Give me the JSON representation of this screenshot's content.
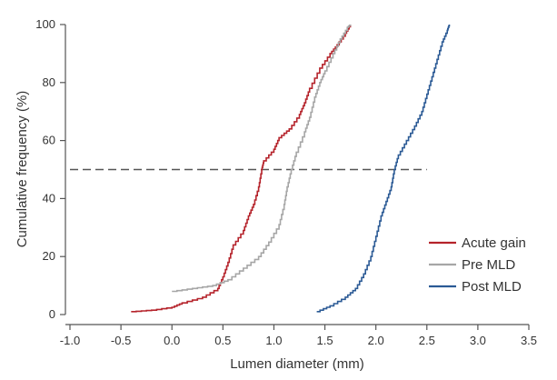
{
  "chart_data": {
    "type": "line",
    "xlabel": "Lumen diameter (mm)",
    "ylabel": "Cumulative frequency (%)",
    "xlim": [
      -1.0,
      3.5
    ],
    "ylim": [
      0,
      100
    ],
    "xticks": [
      "-1.0",
      "-0.5",
      "0.0",
      "0.5",
      "1.0",
      "1.5",
      "2.0",
      "2.5",
      "3.0",
      "3.5"
    ],
    "yticks": [
      "0",
      "20",
      "40",
      "60",
      "80",
      "100"
    ],
    "grid": false,
    "legend_position": "bottom-right",
    "reference_line": {
      "y": 50,
      "x_range": [
        -1.0,
        2.5
      ],
      "style": "dashed"
    },
    "series": [
      {
        "name": "Acute gain",
        "color": "#b5232b",
        "points": [
          [
            -0.4,
            1
          ],
          [
            -0.2,
            1.5
          ],
          [
            0.0,
            2.5
          ],
          [
            0.1,
            4
          ],
          [
            0.3,
            6
          ],
          [
            0.45,
            9
          ],
          [
            0.5,
            13
          ],
          [
            0.55,
            18
          ],
          [
            0.6,
            24
          ],
          [
            0.7,
            29
          ],
          [
            0.75,
            34
          ],
          [
            0.8,
            38
          ],
          [
            0.85,
            44
          ],
          [
            0.88,
            50
          ],
          [
            0.9,
            53
          ],
          [
            1.0,
            57
          ],
          [
            1.05,
            61
          ],
          [
            1.15,
            64
          ],
          [
            1.25,
            69
          ],
          [
            1.3,
            73
          ],
          [
            1.35,
            78
          ],
          [
            1.45,
            85
          ],
          [
            1.55,
            90
          ],
          [
            1.62,
            93
          ],
          [
            1.7,
            97
          ],
          [
            1.75,
            100
          ]
        ]
      },
      {
        "name": "Pre MLD",
        "color": "#a6a6a6",
        "points": [
          [
            0.0,
            8
          ],
          [
            0.2,
            9
          ],
          [
            0.4,
            10
          ],
          [
            0.55,
            12
          ],
          [
            0.7,
            16
          ],
          [
            0.85,
            20
          ],
          [
            0.95,
            25
          ],
          [
            1.05,
            31
          ],
          [
            1.1,
            38
          ],
          [
            1.13,
            44
          ],
          [
            1.17,
            50
          ],
          [
            1.22,
            56
          ],
          [
            1.3,
            63
          ],
          [
            1.35,
            68
          ],
          [
            1.4,
            75
          ],
          [
            1.45,
            80
          ],
          [
            1.5,
            84
          ],
          [
            1.58,
            90
          ],
          [
            1.65,
            95
          ],
          [
            1.72,
            99
          ],
          [
            1.75,
            100
          ]
        ]
      },
      {
        "name": "Post MLD",
        "color": "#2b5a95",
        "points": [
          [
            1.42,
            1
          ],
          [
            1.55,
            3
          ],
          [
            1.7,
            6
          ],
          [
            1.8,
            9
          ],
          [
            1.88,
            14
          ],
          [
            1.95,
            20
          ],
          [
            2.0,
            27
          ],
          [
            2.05,
            34
          ],
          [
            2.1,
            39
          ],
          [
            2.15,
            44
          ],
          [
            2.18,
            50
          ],
          [
            2.22,
            55
          ],
          [
            2.3,
            60
          ],
          [
            2.38,
            65
          ],
          [
            2.45,
            70
          ],
          [
            2.5,
            76
          ],
          [
            2.55,
            82
          ],
          [
            2.6,
            88
          ],
          [
            2.65,
            94
          ],
          [
            2.7,
            98
          ],
          [
            2.72,
            100
          ]
        ]
      }
    ]
  }
}
